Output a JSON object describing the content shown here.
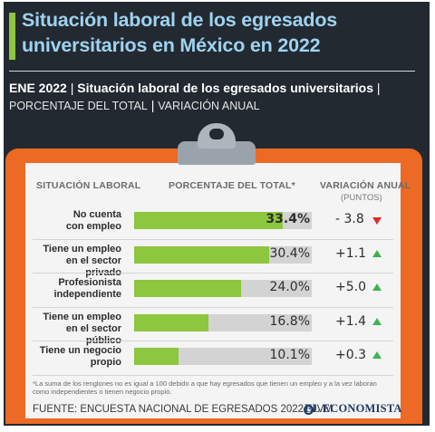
{
  "header": {
    "title": "Situación laboral de los egresados universitarios en México en 2022",
    "subtitle_bold_1": "ENE 2022",
    "subtitle_bold_2": "Situación laboral de los egresados universitarios",
    "subtitle_light_1": "PORCENTAJE DEL TOTAL",
    "subtitle_light_2": "VARIACIÓN ANUAL",
    "separator": "|"
  },
  "table_headers": {
    "col1": "SITUACIÓN LABORAL",
    "col2": "PORCENTAJE DEL TOTAL*",
    "col3": "VARIACIÓN ANUAL",
    "col3_sub": "(PUNTOS)"
  },
  "chart_data": {
    "type": "bar",
    "categories": [
      "No cuenta con empleo",
      "Tiene un empleo en el sector privado",
      "Profesionista independiente",
      "Tiene un empleo en el sector público",
      "Tiene un negocio propio"
    ],
    "category_lines": [
      [
        "No cuenta",
        "con empleo"
      ],
      [
        "Tiene un empleo",
        "en el sector privado"
      ],
      [
        "Profesionista",
        "independiente"
      ],
      [
        "Tiene un empleo",
        "en el sector público"
      ],
      [
        "Tiene un negocio",
        "propio"
      ]
    ],
    "values": [
      33.4,
      30.4,
      24.0,
      16.8,
      10.1
    ],
    "value_labels": [
      "33.4%",
      "30.4%",
      "24.0%",
      "16.8%",
      "10.1%"
    ],
    "changes": [
      -3.8,
      1.1,
      5.0,
      1.4,
      0.3
    ],
    "change_labels": [
      "- 3.8",
      "+1.1",
      "+5.0",
      "+1.4",
      "+0.3"
    ],
    "xlim": [
      0,
      40
    ],
    "bar_color": "#8dc63f",
    "track_color": "#d3d3d3",
    "up_color": "#3fb34f",
    "down_color": "#e02a2a"
  },
  "footer": {
    "note": "*La suma de los renglones no es igual a 100 debido a que hay egresados que tienen un empleo y a la vez laboran como independientes o tienen negocio propio.",
    "source": "FUENTE: ENCUESTA NACIONAL DE EGRESADOS 2022, UVM",
    "brand": "EL ECONOMISTA"
  },
  "colors": {
    "background": "#232931",
    "title": "#9fd2f0",
    "accent": "#8dc63f",
    "board": "#ec6a23"
  }
}
